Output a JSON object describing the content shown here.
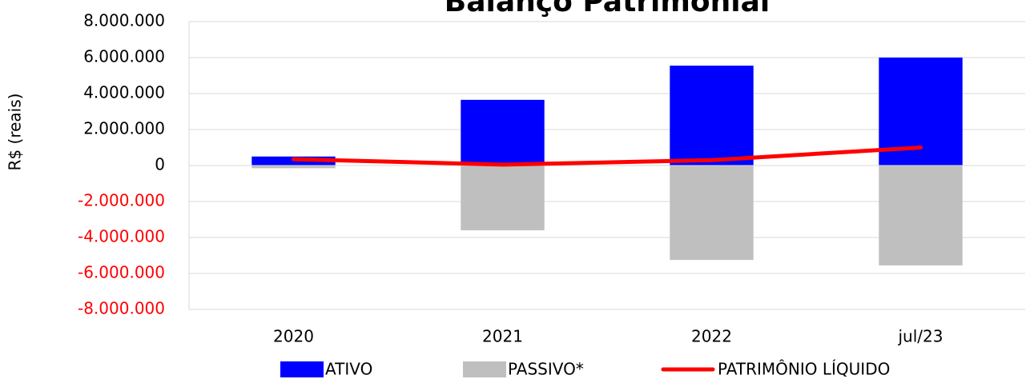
{
  "chart_data": {
    "type": "bar",
    "title": "Balanço Patrimonial",
    "ylabel": "R$ (reais)",
    "categories": [
      "2020",
      "2021",
      "2022",
      "jul/23"
    ],
    "series": [
      {
        "name": "ATIVO",
        "color": "#0000ff",
        "type": "bar",
        "values": [
          500000,
          3650000,
          5550000,
          6000000
        ]
      },
      {
        "name": "PASSIVO*",
        "color": "#bfbfbf",
        "type": "bar",
        "values": [
          -150000,
          -3600000,
          -5250000,
          -5550000
        ]
      },
      {
        "name": "PATRIMÔNIO LÍQUIDO",
        "color": "#ff0000",
        "type": "line",
        "values": [
          350000,
          50000,
          300000,
          1000000
        ]
      }
    ],
    "ylim": [
      -8000000,
      8000000
    ],
    "yticks": [
      {
        "value": 8000000,
        "label": "8.000.000"
      },
      {
        "value": 6000000,
        "label": "6.000.000"
      },
      {
        "value": 4000000,
        "label": "4.000.000"
      },
      {
        "value": 2000000,
        "label": "2.000.000"
      },
      0,
      {
        "value": -2000000,
        "label": "-2.000.000"
      },
      {
        "value": -4000000,
        "label": "-4.000.000"
      },
      {
        "value": -6000000,
        "label": "-6.000.000"
      },
      {
        "value": -8000000,
        "label": "-8.000.000"
      }
    ],
    "negative_tick_color": "#ff0000",
    "grid": true,
    "legend": "bottom"
  }
}
